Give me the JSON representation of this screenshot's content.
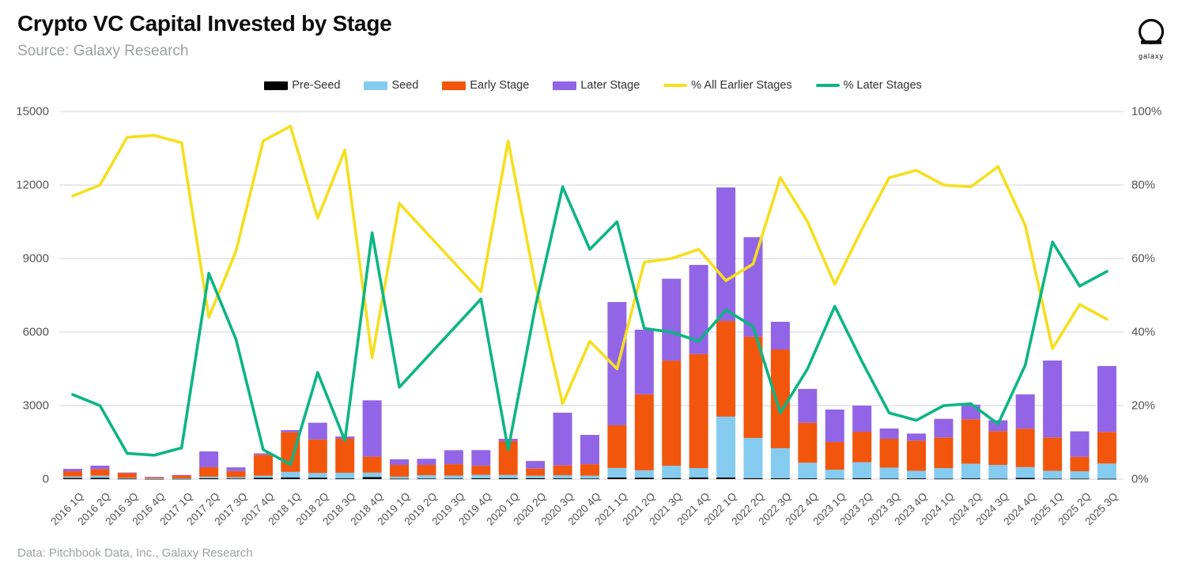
{
  "header": {
    "title": "Crypto VC Capital Invested by Stage",
    "source": "Source: Galaxy Research",
    "logo_text": "galaxy"
  },
  "footer": {
    "credit": "Data: Pitchbook Data, Inc., Galaxy Research"
  },
  "colors": {
    "pre_seed": "#000000",
    "seed": "#85cbf0",
    "early_stage": "#f2560d",
    "later_stage": "#9265e6",
    "pct_earlier": "#f5df1f",
    "pct_later": "#0eb583",
    "gridline": "#dcdcdc",
    "axis_text": "#535353"
  },
  "chart_data": {
    "type": "combo-stacked-bar-line",
    "title": "Crypto VC Capital Invested by Stage",
    "grid": true,
    "legend_position": "top",
    "categories": [
      "2016 1Q",
      "2016 2Q",
      "2016 3Q",
      "2016 4Q",
      "2017 1Q",
      "2017 2Q",
      "2017 3Q",
      "2017 4Q",
      "2018 1Q",
      "2018 2Q",
      "2018 3Q",
      "2018 4Q",
      "2019 1Q",
      "2019 2Q",
      "2019 3Q",
      "2019 4Q",
      "2020 1Q",
      "2020 2Q",
      "2020 3Q",
      "2020 4Q",
      "2021 1Q",
      "2021 2Q",
      "2021 3Q",
      "2021 4Q",
      "2022 1Q",
      "2022 2Q",
      "2022 3Q",
      "2022 4Q",
      "2023 1Q",
      "2023 2Q",
      "2023 3Q",
      "2023 4Q",
      "2024 1Q",
      "2024 2Q",
      "2024 3Q",
      "2024 4Q",
      "2025 1Q",
      "2025 2Q",
      "2025 3Q"
    ],
    "left_axis": {
      "min": 0,
      "max": 15000,
      "ticks": [
        0,
        3000,
        6000,
        9000,
        12000,
        15000
      ]
    },
    "right_axis": {
      "min": 0,
      "max": 100,
      "ticks": [
        0,
        20,
        40,
        60,
        80,
        100
      ],
      "suffix": "%"
    },
    "series": [
      {
        "name": "Pre-Seed",
        "type": "bar",
        "axis": "left",
        "color": "#000000",
        "values": [
          45,
          50,
          20,
          10,
          15,
          35,
          25,
          55,
          65,
          60,
          30,
          80,
          20,
          25,
          25,
          35,
          40,
          40,
          30,
          25,
          65,
          60,
          45,
          70,
          70,
          40,
          35,
          30,
          20,
          40,
          25,
          30,
          20,
          30,
          20,
          50,
          20,
          20,
          15
        ]
      },
      {
        "name": "Seed",
        "type": "bar",
        "axis": "left",
        "color": "#85cbf0",
        "values": [
          60,
          90,
          30,
          15,
          20,
          65,
          55,
          85,
          230,
          190,
          230,
          185,
          80,
          135,
          120,
          140,
          130,
          100,
          130,
          115,
          390,
          300,
          500,
          380,
          2480,
          1640,
          1225,
          640,
          365,
          650,
          445,
          310,
          430,
          600,
          560,
          440,
          320,
          300,
          620
        ]
      },
      {
        "name": "Early Stage",
        "type": "bar",
        "axis": "left",
        "color": "#f2560d",
        "values": [
          220,
          270,
          200,
          40,
          120,
          385,
          250,
          850,
          1620,
          1370,
          1400,
          650,
          480,
          420,
          465,
          370,
          1380,
          290,
          400,
          470,
          1740,
          3100,
          4290,
          4650,
          3900,
          4130,
          4030,
          1630,
          1130,
          1245,
          1175,
          1230,
          1250,
          1810,
          1380,
          1570,
          1360,
          590,
          1290
        ]
      },
      {
        "name": "Later Stage",
        "type": "bar",
        "axis": "left",
        "color": "#9265e6",
        "values": [
          95,
          140,
          20,
          25,
          15,
          645,
          150,
          60,
          85,
          680,
          80,
          2300,
          230,
          250,
          570,
          640,
          95,
          310,
          2150,
          1195,
          5030,
          2640,
          3340,
          3640,
          5450,
          4060,
          1130,
          1380,
          1325,
          1065,
          420,
          290,
          760,
          600,
          440,
          1400,
          3140,
          1040,
          2690
        ]
      },
      {
        "name": "% All Earlier Stages",
        "type": "line",
        "axis": "right",
        "color": "#f5df1f",
        "values": [
          77,
          80,
          93,
          93.5,
          91.5,
          44,
          62,
          92,
          96,
          71,
          89.5,
          33,
          75,
          67,
          59,
          51,
          92,
          53,
          20.5,
          37.5,
          30,
          59,
          60,
          62.5,
          54,
          58.5,
          82,
          70,
          53,
          68,
          82,
          84,
          80,
          79.5,
          85,
          69,
          35.5,
          47.5,
          43.5
        ]
      },
      {
        "name": "% Later Stages",
        "type": "line",
        "axis": "right",
        "color": "#0eb583",
        "values": [
          23,
          20,
          7,
          6.5,
          8.5,
          56,
          38,
          8,
          4,
          29,
          10.5,
          67,
          25,
          33,
          41,
          49,
          8,
          47,
          79.5,
          62.5,
          70,
          41,
          40,
          37.5,
          46,
          41.5,
          18,
          30,
          47,
          32,
          18,
          16,
          20,
          20.5,
          15,
          31,
          64.5,
          52.5,
          56.5
        ]
      }
    ]
  },
  "layout_note": ""
}
